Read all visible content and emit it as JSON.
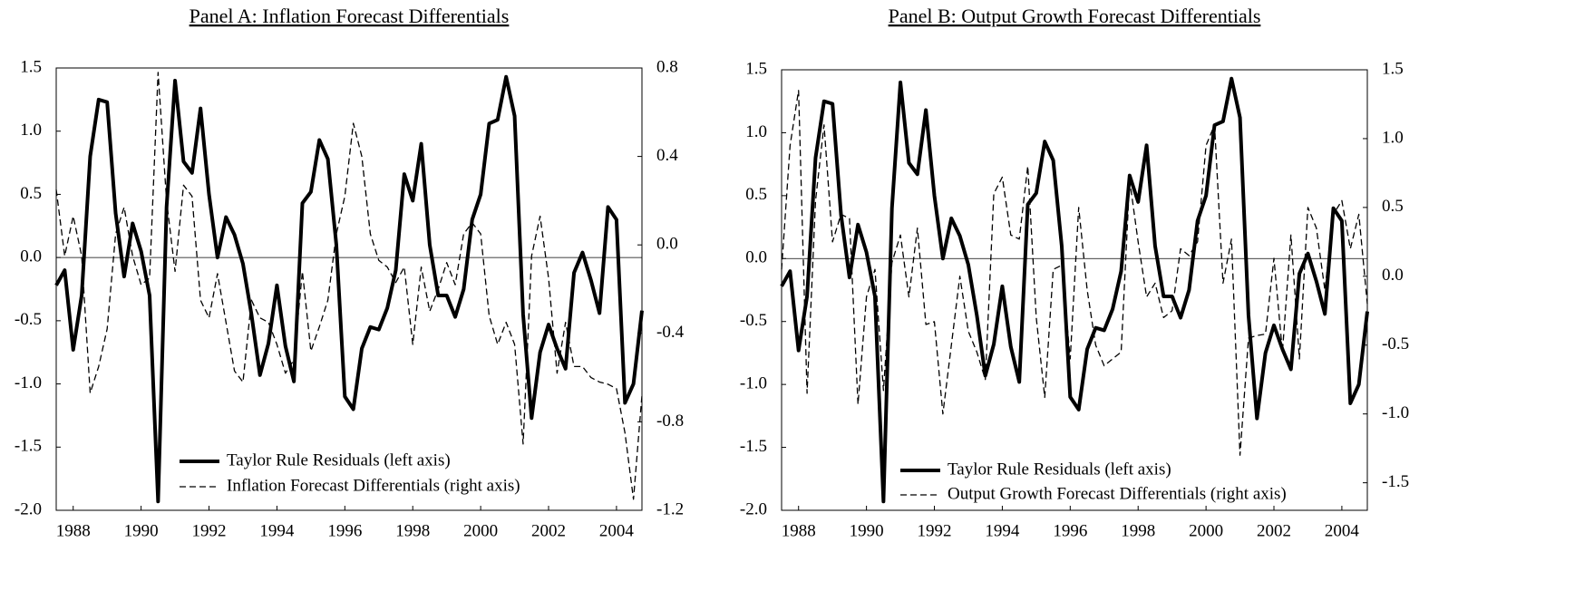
{
  "chart_data": [
    {
      "type": "line",
      "title": "Panel A:  Inflation Forecast Differentials",
      "x": [
        1987.5,
        1987.75,
        1988,
        1988.25,
        1988.5,
        1988.75,
        1989,
        1989.25,
        1989.5,
        1989.75,
        1990,
        1990.25,
        1990.5,
        1990.75,
        1991,
        1991.25,
        1991.5,
        1991.75,
        1992,
        1992.25,
        1992.5,
        1992.75,
        1993,
        1993.25,
        1993.5,
        1993.75,
        1994,
        1994.25,
        1994.5,
        1994.75,
        1995,
        1995.25,
        1995.5,
        1995.75,
        1996,
        1996.25,
        1996.5,
        1996.75,
        1997,
        1997.25,
        1997.5,
        1997.75,
        1998,
        1998.25,
        1998.5,
        1998.75,
        1999,
        1999.25,
        1999.5,
        1999.75,
        2000,
        2000.25,
        2000.5,
        2000.75,
        2001,
        2001.25,
        2001.5,
        2001.75,
        2002,
        2002.25,
        2002.5,
        2002.75,
        2003,
        2003.25,
        2003.5,
        2003.75,
        2004,
        2004.25,
        2004.5,
        2004.75
      ],
      "series": [
        {
          "name": "Taylor Rule Residuals (left axis)",
          "color": "#000000",
          "dashed": false,
          "values": [
            -0.22,
            -0.1,
            -0.73,
            -0.3,
            0.8,
            1.25,
            1.23,
            0.35,
            -0.15,
            0.27,
            0.05,
            -0.3,
            -1.93,
            0.4,
            1.4,
            0.76,
            0.67,
            1.18,
            0.5,
            0.0,
            0.32,
            0.18,
            -0.05,
            -0.45,
            -0.93,
            -0.68,
            -0.22,
            -0.7,
            -0.98,
            0.43,
            0.52,
            0.93,
            0.78,
            0.1,
            -1.1,
            -1.2,
            -0.72,
            -0.55,
            -0.57,
            -0.4,
            -0.1,
            0.66,
            0.45,
            0.9,
            0.1,
            -0.3,
            -0.3,
            -0.47,
            -0.25,
            0.3,
            0.5,
            1.06,
            1.09,
            1.43,
            1.12,
            -0.45,
            -1.27,
            -0.75,
            -0.53,
            -0.72,
            -0.88,
            -0.12,
            0.04,
            -0.18,
            -0.44,
            0.4,
            0.3,
            -1.15,
            -1.0,
            -0.42
          ]
        },
        {
          "name": "Inflation Forecast Differentials (right axis)",
          "color": "#000000",
          "dashed": true,
          "axis": "y2",
          "values": [
            0.25,
            -0.05,
            0.13,
            -0.05,
            -0.67,
            -0.55,
            -0.38,
            0.05,
            0.17,
            -0.05,
            -0.18,
            -0.15,
            0.78,
            0.2,
            -0.12,
            0.27,
            0.22,
            -0.25,
            -0.33,
            -0.13,
            -0.35,
            -0.57,
            -0.62,
            -0.25,
            -0.33,
            -0.35,
            -0.45,
            -0.58,
            -0.52,
            -0.12,
            -0.48,
            -0.37,
            -0.25,
            0.05,
            0.22,
            0.55,
            0.4,
            0.05,
            -0.07,
            -0.1,
            -0.17,
            -0.1,
            -0.45,
            -0.1,
            -0.3,
            -0.2,
            -0.08,
            -0.18,
            0.05,
            0.1,
            0.05,
            -0.32,
            -0.45,
            -0.35,
            -0.45,
            -0.9,
            -0.05,
            0.13,
            -0.15,
            -0.58,
            -0.35,
            -0.55,
            -0.55,
            -0.6,
            -0.62,
            -0.63,
            -0.65,
            -0.85,
            -1.15,
            -0.68
          ]
        }
      ],
      "xlim": [
        1987.5,
        2004.75
      ],
      "xticks": [
        1988,
        1990,
        1992,
        1994,
        1996,
        1998,
        2000,
        2002,
        2004
      ],
      "ylim": [
        -2.0,
        1.5
      ],
      "yticks": [
        {
          "value": -2,
          "label": "-2.0"
        },
        -1.5,
        {
          "value": -1,
          "label": "-1.0"
        },
        -0.5,
        {
          "value": 0,
          "label": "0.0"
        },
        0.5,
        {
          "value": 1,
          "label": "1.0"
        },
        1.5
      ],
      "y2lim": [
        -1.2,
        0.8
      ],
      "y2ticks": [
        -1.2,
        -0.8,
        -0.4,
        {
          "value": 0,
          "label": "0.0"
        },
        0.4,
        0.8
      ],
      "zero_line": true
    },
    {
      "type": "line",
      "title": "Panel B: Output Growth Forecast Differentials",
      "x": [
        1987.5,
        1987.75,
        1988,
        1988.25,
        1988.5,
        1988.75,
        1989,
        1989.25,
        1989.5,
        1989.75,
        1990,
        1990.25,
        1990.5,
        1990.75,
        1991,
        1991.25,
        1991.5,
        1991.75,
        1992,
        1992.25,
        1992.5,
        1992.75,
        1993,
        1993.25,
        1993.5,
        1993.75,
        1994,
        1994.25,
        1994.5,
        1994.75,
        1995,
        1995.25,
        1995.5,
        1995.75,
        1996,
        1996.25,
        1996.5,
        1996.75,
        1997,
        1997.25,
        1997.5,
        1997.75,
        1998,
        1998.25,
        1998.5,
        1998.75,
        1999,
        1999.25,
        1999.5,
        1999.75,
        2000,
        2000.25,
        2000.5,
        2000.75,
        2001,
        2001.25,
        2001.5,
        2001.75,
        2002,
        2002.25,
        2002.5,
        2002.75,
        2003,
        2003.25,
        2003.5,
        2003.75,
        2004,
        2004.25,
        2004.5,
        2004.75
      ],
      "series": [
        {
          "name": "Taylor Rule Residuals (left axis)",
          "color": "#000000",
          "dashed": false,
          "values": [
            -0.22,
            -0.1,
            -0.73,
            -0.3,
            0.8,
            1.25,
            1.23,
            0.35,
            -0.15,
            0.27,
            0.05,
            -0.3,
            -1.93,
            0.4,
            1.4,
            0.76,
            0.67,
            1.18,
            0.5,
            0.0,
            0.32,
            0.18,
            -0.05,
            -0.45,
            -0.93,
            -0.68,
            -0.22,
            -0.7,
            -0.98,
            0.43,
            0.52,
            0.93,
            0.78,
            0.1,
            -1.1,
            -1.2,
            -0.72,
            -0.55,
            -0.57,
            -0.4,
            -0.1,
            0.66,
            0.45,
            0.9,
            0.1,
            -0.3,
            -0.3,
            -0.47,
            -0.25,
            0.3,
            0.5,
            1.06,
            1.09,
            1.43,
            1.12,
            -0.45,
            -1.27,
            -0.75,
            -0.53,
            -0.72,
            -0.88,
            -0.12,
            0.04,
            -0.18,
            -0.44,
            0.4,
            0.3,
            -1.15,
            -1.0,
            -0.42
          ]
        },
        {
          "name": "Output Growth Forecast Differentials (right axis)",
          "color": "#000000",
          "dashed": true,
          "axis": "y2",
          "values": [
            0.05,
            0.95,
            1.35,
            -0.85,
            0.55,
            1.1,
            0.25,
            0.45,
            0.42,
            -0.93,
            -0.15,
            0.05,
            -0.83,
            0.1,
            0.3,
            -0.15,
            0.35,
            -0.35,
            -0.33,
            -1.0,
            -0.5,
            0.0,
            -0.4,
            -0.55,
            -0.75,
            0.6,
            0.72,
            0.3,
            0.27,
            0.8,
            -0.3,
            -0.88,
            0.05,
            0.08,
            -0.6,
            0.5,
            -0.1,
            -0.5,
            -0.65,
            -0.6,
            -0.55,
            0.7,
            0.25,
            -0.15,
            -0.05,
            -0.3,
            -0.25,
            0.2,
            0.15,
            0.25,
            0.95,
            1.1,
            -0.05,
            0.27,
            -1.3,
            -0.45,
            -0.43,
            -0.42,
            0.13,
            -0.55,
            0.3,
            -0.6,
            0.5,
            0.35,
            -0.1,
            0.45,
            0.55,
            0.2,
            0.45,
            -0.2
          ]
        }
      ],
      "xlim": [
        1987.5,
        2004.75
      ],
      "xticks": [
        1988,
        1990,
        1992,
        1994,
        1996,
        1998,
        2000,
        2002,
        2004
      ],
      "ylim": [
        -2.0,
        1.5
      ],
      "yticks": [
        {
          "value": -2,
          "label": "-2.0"
        },
        -1.5,
        {
          "value": -1,
          "label": "-1.0"
        },
        -0.5,
        {
          "value": 0,
          "label": "0.0"
        },
        0.5,
        {
          "value": 1,
          "label": "1.0"
        },
        1.5
      ],
      "y2lim": [
        -1.7,
        1.5
      ],
      "y2ticks": [
        -1.5,
        {
          "value": -1,
          "label": "-1.0"
        },
        -0.5,
        {
          "value": 0,
          "label": "0.0"
        },
        0.5,
        {
          "value": 1,
          "label": "1.0"
        },
        1.5
      ],
      "zero_line": true
    }
  ]
}
